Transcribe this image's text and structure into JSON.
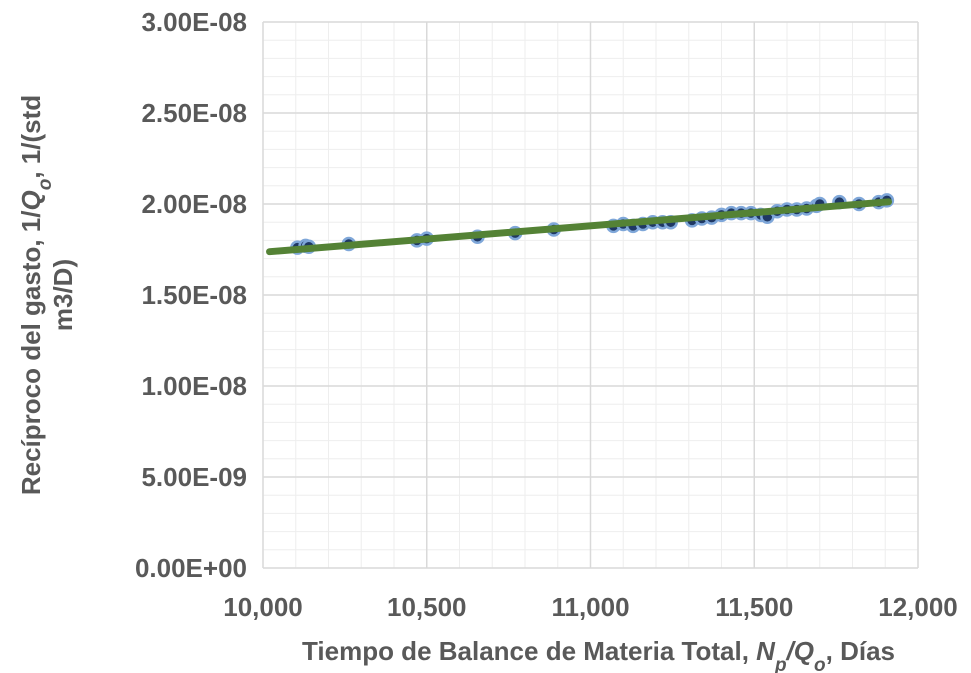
{
  "chart_data": {
    "type": "scatter",
    "title": "",
    "xlabel": {
      "parts": [
        {
          "text": "Tiempo de Balance de Materia Total, ",
          "italic": false
        },
        {
          "text": "N",
          "italic": true
        },
        {
          "text": "p",
          "italic": true,
          "sub": true
        },
        {
          "text": "/",
          "italic": true
        },
        {
          "text": "Q",
          "italic": true
        },
        {
          "text": "o",
          "italic": true,
          "sub": true
        },
        {
          "text": ", Días",
          "italic": false
        }
      ]
    },
    "ylabel": {
      "line1": [
        {
          "text": "Recíproco del gasto, 1/",
          "italic": false
        },
        {
          "text": "Q",
          "italic": true
        },
        {
          "text": "o",
          "italic": true,
          "sub": true
        },
        {
          "text": ", 1/(std",
          "italic": false
        }
      ],
      "line2": [
        {
          "text": "m3/D)",
          "italic": false
        }
      ]
    },
    "xlim": [
      10000,
      12000
    ],
    "ylim": [
      0,
      3e-08
    ],
    "x_ticks": [
      {
        "value": 10000,
        "label": "10,000"
      },
      {
        "value": 10500,
        "label": "10,500"
      },
      {
        "value": 11000,
        "label": "11,000"
      },
      {
        "value": 11500,
        "label": "11,500"
      },
      {
        "value": 12000,
        "label": "12,000"
      }
    ],
    "y_ticks": [
      {
        "value": 0,
        "label": "0.00E+00"
      },
      {
        "value": 5e-09,
        "label": "5.00E-09"
      },
      {
        "value": 1e-08,
        "label": "1.00E-08"
      },
      {
        "value": 1.5e-08,
        "label": "1.50E-08"
      },
      {
        "value": 2e-08,
        "label": "2.00E-08"
      },
      {
        "value": 2.5e-08,
        "label": "2.50E-08"
      },
      {
        "value": 3e-08,
        "label": "3.00E-08"
      }
    ],
    "grid": true,
    "minor_grid_divisions": 5,
    "legend": "none",
    "colors": {
      "marker_fill": "#1f3864",
      "marker_edge": "#7fa7d9",
      "trendline": "#548235",
      "major_grid": "#d9d9d9",
      "minor_grid": "#eeeeee",
      "tick_text": "#595959"
    },
    "series": [
      {
        "kind": "points",
        "x": [
          10105,
          10130,
          10140,
          10262,
          10470,
          10500,
          10655,
          10770,
          10888,
          11070,
          11100,
          11130,
          11160,
          11190,
          11220,
          11245,
          11310,
          11340,
          11370,
          11400,
          11430,
          11460,
          11490,
          11520,
          11540,
          11570,
          11600,
          11630,
          11660,
          11690,
          11700,
          11760,
          11820,
          11880,
          11905
        ],
        "y": [
          1.76e-08,
          1.77e-08,
          1.765e-08,
          1.78e-08,
          1.8e-08,
          1.81e-08,
          1.82e-08,
          1.84e-08,
          1.86e-08,
          1.88e-08,
          1.89e-08,
          1.88e-08,
          1.89e-08,
          1.9e-08,
          1.9e-08,
          1.9e-08,
          1.91e-08,
          1.92e-08,
          1.925e-08,
          1.94e-08,
          1.95e-08,
          1.95e-08,
          1.95e-08,
          1.94e-08,
          1.93e-08,
          1.96e-08,
          1.97e-08,
          1.97e-08,
          1.975e-08,
          1.99e-08,
          2e-08,
          2.01e-08,
          2e-08,
          2.01e-08,
          2.02e-08
        ]
      },
      {
        "kind": "trendline",
        "x": [
          10020,
          11910
        ],
        "y": [
          1.738e-08,
          2.012e-08
        ]
      }
    ]
  }
}
